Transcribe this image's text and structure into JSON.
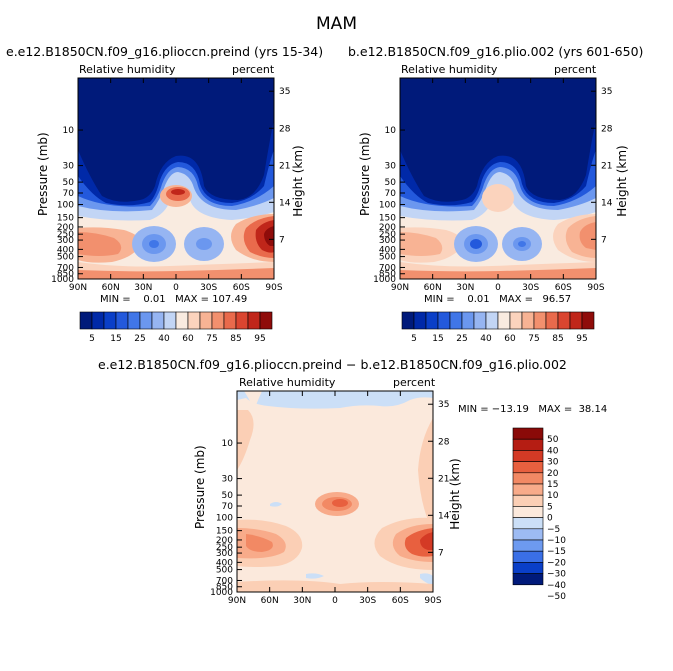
{
  "figure": {
    "title": "MAM"
  },
  "panels": [
    {
      "title": "e.e12.B1850CN.f09_g16.plioccn.preind (yrs 15-34)",
      "left_label": "Relative humidity",
      "right_label": "percent",
      "stats": "MIN =    0.01   MAX = 107.49"
    },
    {
      "title": "b.e12.B1850CN.f09_g16.plio.002 (yrs 601-650)",
      "left_label": "Relative humidity",
      "right_label": "percent",
      "stats": "MIN =    0.01   MAX =   96.57"
    },
    {
      "title": "e.e12.B1850CN.f09_g16.plioccn.preind − b.e12.B1850CN.f09_g16.plio.002",
      "left_label": "Relative humidity",
      "right_label": "percent",
      "stats": "MIN = −13.19   MAX =  38.14"
    }
  ],
  "colors": {
    "abs_scale": [
      "#001a7a",
      "#0029a8",
      "#0a3fc8",
      "#2359dc",
      "#4076e8",
      "#6b97ef",
      "#96b5f2",
      "#c2d5f5",
      "#f9ebe0",
      "#fbd3bd",
      "#f8b394",
      "#f2906e",
      "#e96a4c",
      "#da4530",
      "#c0261a",
      "#8f0c0a"
    ],
    "diff_scale": [
      "#001a7a",
      "#0a3fc8",
      "#3a6fe6",
      "#6d9af0",
      "#9dbbf3",
      "#cbdff7",
      "#fbe9dc",
      "#fbcfb5",
      "#f8ab8a",
      "#f28964",
      "#e8603f",
      "#d43a25",
      "#b51d13",
      "#8a0a08"
    ],
    "diff_background": "#fbe9dc"
  },
  "chart_data": [
    {
      "type": "contour",
      "title": "e.e12.B1850CN.f09_g16.plioccn.preind (yrs 15-34)",
      "xlabel": "",
      "ylabel": "Pressure (mb)",
      "y2label": "Height (km)",
      "x_ticks": [
        "90N",
        "60N",
        "30N",
        "0",
        "30S",
        "60S",
        "90S"
      ],
      "y_ticks": [
        "10",
        "30",
        "50",
        "70",
        "100",
        "150",
        "200",
        "250",
        "300",
        "400",
        "500",
        "700",
        "850",
        "1000"
      ],
      "y2_ticks": [
        "35",
        "28",
        "21",
        "14",
        "7"
      ],
      "colorbar": {
        "labels": [
          "5",
          "15",
          "25",
          "40",
          "60",
          "75",
          "85",
          "95"
        ],
        "levels": [
          5,
          10,
          15,
          20,
          25,
          30,
          40,
          50,
          60,
          65,
          70,
          75,
          80,
          85,
          90,
          95
        ]
      },
      "min": 0.01,
      "max": 107.49
    },
    {
      "type": "contour",
      "title": "b.e12.B1850CN.f09_g16.plio.002 (yrs 601-650)",
      "xlabel": "",
      "ylabel": "Pressure (mb)",
      "y2label": "Height (km)",
      "x_ticks": [
        "90N",
        "60N",
        "30N",
        "0",
        "30S",
        "60S",
        "90S"
      ],
      "y_ticks": [
        "10",
        "30",
        "50",
        "70",
        "100",
        "150",
        "200",
        "250",
        "300",
        "400",
        "500",
        "700",
        "850",
        "1000"
      ],
      "y2_ticks": [
        "35",
        "28",
        "21",
        "14",
        "7"
      ],
      "colorbar": {
        "labels": [
          "5",
          "15",
          "25",
          "40",
          "60",
          "75",
          "85",
          "95"
        ],
        "levels": [
          5,
          10,
          15,
          20,
          25,
          30,
          40,
          50,
          60,
          65,
          70,
          75,
          80,
          85,
          90,
          95
        ]
      },
      "min": 0.01,
      "max": 96.57
    },
    {
      "type": "contour",
      "title": "e.e12.B1850CN.f09_g16.plioccn.preind − b.e12.B1850CN.f09_g16.plio.002",
      "xlabel": "",
      "ylabel": "Pressure (mb)",
      "y2label": "Height (km)",
      "x_ticks": [
        "90N",
        "60N",
        "30N",
        "0",
        "30S",
        "60S",
        "90S"
      ],
      "y_ticks": [
        "10",
        "30",
        "50",
        "70",
        "100",
        "150",
        "200",
        "250",
        "300",
        "400",
        "500",
        "700",
        "850",
        "1000"
      ],
      "y2_ticks": [
        "35",
        "28",
        "21",
        "14",
        "7"
      ],
      "colorbar": {
        "labels": [
          "50",
          "40",
          "30",
          "20",
          "15",
          "10",
          "5",
          "0",
          "−5",
          "−10",
          "−15",
          "−20",
          "−30",
          "−40",
          "−50"
        ],
        "levels": [
          -50,
          -40,
          -30,
          -20,
          -15,
          -10,
          -5,
          0,
          5,
          10,
          15,
          20,
          30,
          40,
          50
        ]
      },
      "min": -13.19,
      "max": 38.14
    }
  ]
}
